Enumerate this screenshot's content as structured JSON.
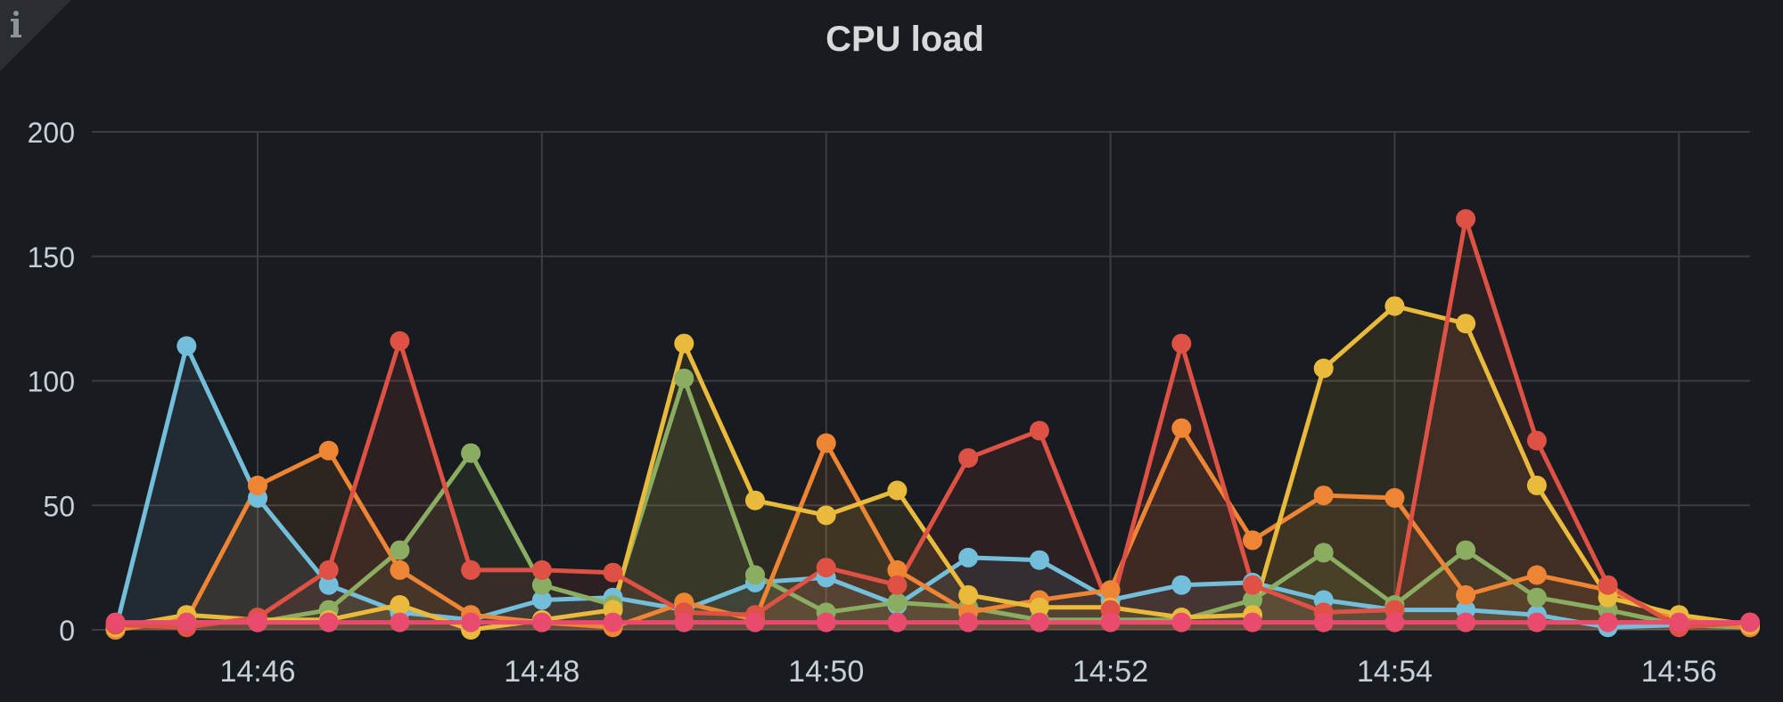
{
  "panel": {
    "title": "CPU load",
    "info_icon": "info-icon"
  },
  "colors": {
    "background": "#181b1f",
    "grid": "#3a3d42",
    "text": "#c7d0d9"
  },
  "chart_data": {
    "type": "area",
    "title": "CPU load",
    "xlabel": "",
    "ylabel": "",
    "ylim": [
      0,
      200
    ],
    "yticks": [
      0,
      50,
      100,
      150,
      200
    ],
    "xlim": [
      "14:44:50",
      "14:56:30"
    ],
    "xticks": [
      "14:46",
      "14:48",
      "14:50",
      "14:52",
      "14:54",
      "14:56"
    ],
    "grid": true,
    "legend": "none",
    "x": [
      "14:45:00",
      "14:45:30",
      "14:46:00",
      "14:46:30",
      "14:47:00",
      "14:47:30",
      "14:48:00",
      "14:48:30",
      "14:49:00",
      "14:49:30",
      "14:50:00",
      "14:50:30",
      "14:51:00",
      "14:51:30",
      "14:52:00",
      "14:52:30",
      "14:53:00",
      "14:53:30",
      "14:54:00",
      "14:54:30",
      "14:55:00",
      "14:55:30",
      "14:56:00",
      "14:56:30"
    ],
    "series": [
      {
        "color": "#73bfdb",
        "values": [
          0,
          114,
          53,
          18,
          7,
          4,
          12,
          13,
          8,
          19,
          21,
          10,
          29,
          28,
          12,
          18,
          19,
          12,
          8,
          8,
          6,
          1,
          2,
          1
        ]
      },
      {
        "color": "#8aad62",
        "values": [
          2,
          3,
          3,
          8,
          32,
          71,
          18,
          10,
          101,
          22,
          7,
          11,
          9,
          4,
          4,
          4,
          12,
          31,
          10,
          32,
          13,
          8,
          2,
          1
        ]
      },
      {
        "color": "#ed8534",
        "values": [
          0,
          4,
          58,
          72,
          24,
          6,
          3,
          1,
          11,
          4,
          75,
          24,
          7,
          12,
          16,
          81,
          36,
          54,
          53,
          14,
          22,
          16,
          4,
          1
        ]
      },
      {
        "color": "#e9ba3b",
        "values": [
          1,
          6,
          4,
          4,
          10,
          0,
          4,
          8,
          115,
          52,
          46,
          56,
          14,
          9,
          9,
          5,
          6,
          105,
          130,
          123,
          58,
          13,
          6,
          2
        ]
      },
      {
        "color": "#de5145",
        "values": [
          2,
          1,
          5,
          24,
          116,
          24,
          24,
          23,
          7,
          6,
          25,
          18,
          69,
          80,
          8,
          115,
          18,
          7,
          8,
          165,
          76,
          18,
          1,
          3
        ]
      },
      {
        "color": "#e84b6d",
        "values": [
          3,
          3,
          3,
          3,
          3,
          3,
          3,
          3,
          3,
          3,
          3,
          3,
          3,
          3,
          3,
          3,
          3,
          3,
          3,
          3,
          3,
          3,
          3,
          3
        ]
      }
    ]
  }
}
